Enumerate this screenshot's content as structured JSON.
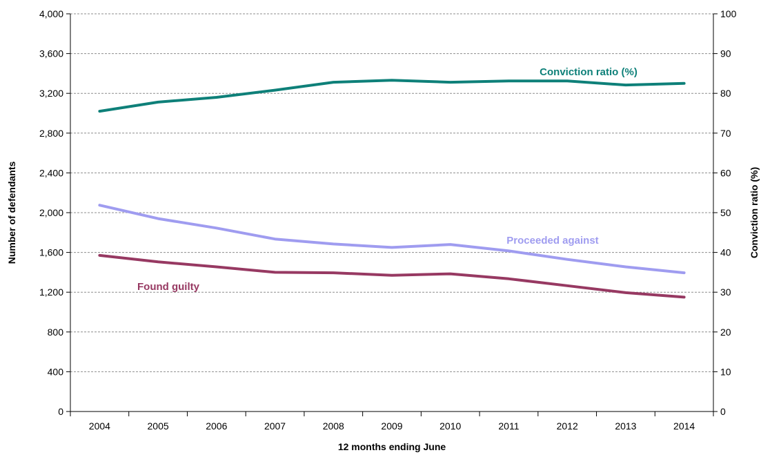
{
  "chart_data": {
    "type": "line",
    "xlabel": "12 months ending June",
    "ylabel_left": "Number of defendants",
    "ylabel_right": "Conviction ratio (%)",
    "ylim_left": [
      0,
      4000
    ],
    "ylim_right": [
      0,
      100
    ],
    "yticks_left": [
      "0",
      "400",
      "800",
      "1,200",
      "1,600",
      "2,000",
      "2,400",
      "2,800",
      "3,200",
      "3,600",
      "4,000"
    ],
    "yticks_right": [
      "0",
      "10",
      "20",
      "30",
      "40",
      "50",
      "60",
      "70",
      "80",
      "90",
      "100"
    ],
    "categories": [
      "2004",
      "2005",
      "2006",
      "2007",
      "2008",
      "2009",
      "2010",
      "2011",
      "2012",
      "2013",
      "2014"
    ],
    "grid": true,
    "series": [
      {
        "name": "Conviction ratio (%)",
        "axis": "right",
        "color": "#0e8079",
        "values": [
          75.5,
          77.8,
          79.0,
          80.8,
          82.8,
          83.3,
          82.8,
          83.1,
          83.1,
          82.1,
          82.5
        ]
      },
      {
        "name": "Proceeded against",
        "axis": "left",
        "color": "#9f9cf0",
        "values": [
          2075,
          1940,
          1845,
          1735,
          1685,
          1650,
          1680,
          1615,
          1530,
          1455,
          1395
        ]
      },
      {
        "name": "Found guilty",
        "axis": "left",
        "color": "#973962",
        "values": [
          1570,
          1505,
          1455,
          1400,
          1395,
          1370,
          1385,
          1335,
          1265,
          1195,
          1150
        ]
      }
    ]
  }
}
